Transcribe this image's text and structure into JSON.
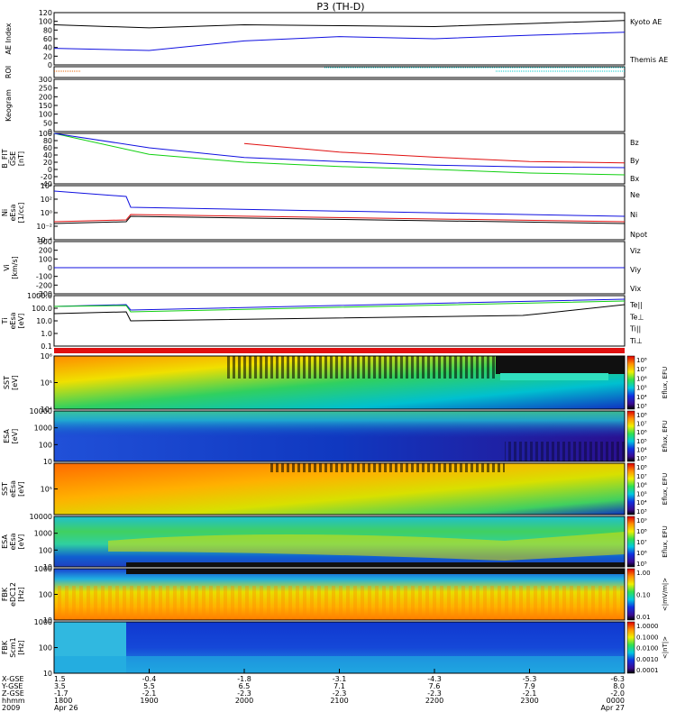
{
  "title": "P3 (TH-D)",
  "colors": {
    "black": "#000000",
    "blue": "#1010e0",
    "red": "#e01010",
    "green": "#10d010",
    "cyan": "#00c8c8"
  },
  "panels": [
    {
      "id": "ae",
      "ylabel": [
        "AE Index"
      ],
      "ticks": [
        "120",
        "100",
        "80",
        "60",
        "40",
        "20",
        "0"
      ],
      "legend": [
        {
          "text": "Kyoto AE",
          "color": "#1010e0"
        },
        {
          "text": "Themis AE",
          "color": "#000000"
        }
      ]
    },
    {
      "id": "roi",
      "ylabel": [
        "ROI"
      ],
      "ticks": [],
      "legend": []
    },
    {
      "id": "keogram",
      "ylabel": [
        "Keogram"
      ],
      "ticks": [
        "300",
        "250",
        "200",
        "150",
        "100",
        "50",
        "0"
      ],
      "legend": []
    },
    {
      "id": "bfit",
      "ylabel": [
        "B_FIT",
        "GSE",
        "[nT]"
      ],
      "ticks": [
        "100",
        "80",
        "60",
        "40",
        "20",
        "0",
        "-20",
        "-40"
      ],
      "legend": [
        {
          "text": "Bz",
          "color": "#e01010"
        },
        {
          "text": "By",
          "color": "#10d010"
        },
        {
          "text": "Bx",
          "color": "#1010e0"
        }
      ]
    },
    {
      "id": "ni",
      "ylabel": [
        "Ni",
        "eEsa",
        "[1/cc]"
      ],
      "ticks": [
        "10⁴",
        "10²",
        "10⁰",
        "10⁻²",
        "10⁻⁴"
      ],
      "legend": [
        {
          "text": "Ne",
          "color": "#e01010"
        },
        {
          "text": "Ni",
          "color": "#000000"
        },
        {
          "text": "Npot",
          "color": "#1010e0"
        }
      ]
    },
    {
      "id": "vi",
      "ylabel": [
        "Vi",
        "[km/s]"
      ],
      "ticks": [
        "300",
        "200",
        "100",
        "0",
        "-100",
        "-200",
        "-300"
      ],
      "legend": [
        {
          "text": "Viz",
          "color": "#e01010"
        },
        {
          "text": "Viy",
          "color": "#10d010"
        },
        {
          "text": "Vix",
          "color": "#1010e0"
        }
      ]
    },
    {
      "id": "ti",
      "ylabel": [
        "Ti",
        "eEsa",
        "[eV]"
      ],
      "ticks": [
        "1000.0",
        "100.0",
        "10.0",
        "1.0",
        "0.1"
      ],
      "legend": [
        {
          "text": "Te||",
          "color": "#000000"
        },
        {
          "text": "Te⊥",
          "color": "#e01010"
        },
        {
          "text": "Ti||",
          "color": "#10d010"
        },
        {
          "text": "Ti⊥",
          "color": "#1010e0"
        }
      ]
    },
    {
      "id": "sst_i",
      "ylabel": [
        "SST",
        "[eV]"
      ],
      "ticks": [
        "10⁶",
        "10⁵",
        "10⁴"
      ],
      "legend": []
    },
    {
      "id": "esa_i",
      "ylabel": [
        "ESA",
        "[eV]"
      ],
      "ticks": [
        "10000",
        "1000",
        "100",
        "10"
      ],
      "legend": []
    },
    {
      "id": "sst_e",
      "ylabel": [
        "SST",
        "eEsa",
        "[eV]"
      ],
      "ticks": [
        "10⁵"
      ],
      "legend": []
    },
    {
      "id": "esa_e",
      "ylabel": [
        "ESA",
        "eEsa",
        "[eV]"
      ],
      "ticks": [
        "10000",
        "1000",
        "100",
        "10"
      ],
      "legend": []
    },
    {
      "id": "fbk1",
      "ylabel": [
        "FBK",
        "eDC12",
        "[Hz]"
      ],
      "ticks": [
        "1000",
        "100",
        "10"
      ],
      "legend": []
    },
    {
      "id": "fbk2",
      "ylabel": [
        "FBK",
        "Scm1",
        "[Hz]"
      ],
      "ticks": [
        "1000",
        "100",
        "10"
      ],
      "legend": []
    }
  ],
  "colorbars": [
    {
      "title": "Eflux, EFU",
      "labels": [
        "10⁸",
        "10⁷",
        "10⁶",
        "10⁵",
        "10⁴",
        "10³"
      ]
    },
    {
      "title": "Eflux, EFU",
      "labels": [
        "10⁸",
        "10⁷",
        "10⁶",
        "10⁵",
        "10⁴",
        "10³"
      ]
    },
    {
      "title": "Eflux, EFU",
      "labels": [
        "10⁸",
        "10⁷",
        "10⁶",
        "10⁵",
        "10⁴",
        "10³"
      ]
    },
    {
      "title": "Eflux, EFU",
      "labels": [
        "10⁹",
        "10⁸",
        "10⁷",
        "10⁶",
        "10⁵"
      ]
    },
    {
      "title": "<|mV/m|>",
      "labels": [
        "1.00",
        "0.10",
        "0.01"
      ]
    },
    {
      "title": "<|nT|>",
      "labels": [
        "1.0000",
        "0.1000",
        "0.0100",
        "0.0010",
        "0.0001"
      ]
    }
  ],
  "xaxis": {
    "row_labels": [
      "X-GSE",
      "Y-GSE",
      "Z-GSE",
      "hhmm",
      "2009"
    ],
    "columns": [
      {
        "rows": [
          "1.5",
          "3.5",
          "-1.7",
          "1800",
          "Apr 26"
        ]
      },
      {
        "rows": [
          "-0.4",
          "5.5",
          "-2.1",
          "1900",
          ""
        ]
      },
      {
        "rows": [
          "-1.8",
          "6.5",
          "-2.3",
          "2000",
          ""
        ]
      },
      {
        "rows": [
          "-3.1",
          "7.1",
          "-2.3",
          "2100",
          ""
        ]
      },
      {
        "rows": [
          "-4.3",
          "7.6",
          "-2.3",
          "2200",
          ""
        ]
      },
      {
        "rows": [
          "-5.3",
          "7.9",
          "-2.1",
          "2300",
          ""
        ]
      },
      {
        "rows": [
          "-6.3",
          "8.0",
          "-2.0",
          "0000",
          "Apr 27"
        ]
      }
    ]
  },
  "chart_data": [
    {
      "type": "line",
      "title": "P3 (TH-D)",
      "ylabel": "AE Index",
      "ylim": [
        0,
        120
      ],
      "x": [
        "1800",
        "1900",
        "2000",
        "2100",
        "2200",
        "2300",
        "0000"
      ],
      "series": [
        {
          "name": "Kyoto AE",
          "values": [
            38,
            33,
            55,
            65,
            60,
            68,
            75
          ]
        },
        {
          "name": "Themis AE",
          "values": [
            92,
            85,
            92,
            90,
            88,
            95,
            102
          ]
        }
      ]
    },
    {
      "type": "line",
      "ylabel": "B_FIT GSE [nT]",
      "ylim": [
        -40,
        100
      ],
      "x": [
        "1800",
        "1900",
        "2000",
        "2100",
        "2200",
        "2300",
        "0000"
      ],
      "series": [
        {
          "name": "Bz",
          "values": [
            null,
            null,
            72,
            48,
            34,
            22,
            18
          ]
        },
        {
          "name": "By",
          "values": [
            100,
            42,
            20,
            8,
            0,
            -10,
            -15
          ]
        },
        {
          "name": "Bx",
          "values": [
            100,
            60,
            33,
            22,
            12,
            7,
            5
          ]
        }
      ]
    },
    {
      "type": "line",
      "ylabel": "Vi [km/s]",
      "ylim": [
        -300,
        300
      ],
      "x": [
        "1800",
        "1900",
        "2000",
        "2100",
        "2200",
        "2300",
        "0000"
      ],
      "series": [
        {
          "name": "Viz",
          "values": [
            0,
            0,
            0,
            0,
            0,
            0,
            0
          ]
        },
        {
          "name": "Viy",
          "values": [
            0,
            0,
            0,
            0,
            0,
            0,
            0
          ]
        },
        {
          "name": "Vix",
          "values": [
            0,
            0,
            0,
            0,
            0,
            0,
            0
          ]
        }
      ]
    }
  ]
}
